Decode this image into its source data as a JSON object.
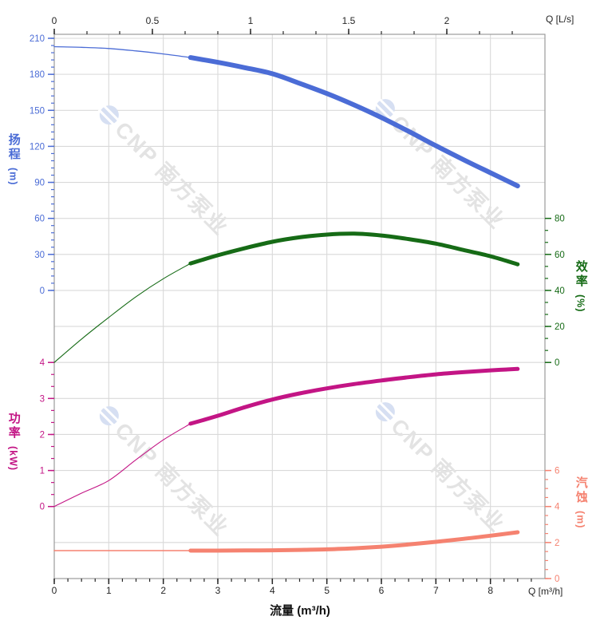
{
  "page": {
    "corner_top_right": "Q [L/s]",
    "corner_bottom_right": "Q [m³/h]",
    "xlabel": "流量 (m³/h)"
  },
  "axis_titles": {
    "head": {
      "chars": "扬程",
      "unit": "(m)"
    },
    "power": {
      "chars": "功率",
      "unit": "(kW)"
    },
    "efficiency": {
      "chars": "效率",
      "unit": "(%)"
    },
    "npsh": {
      "chars": "汽蚀",
      "unit": "(m)"
    }
  },
  "watermark": {
    "text": "CNP 南方泵业"
  },
  "colors": {
    "head": "#4b6cd6",
    "efficiency": "#166b16",
    "power": "#c31585",
    "npsh": "#f58270",
    "grid": "#d9d9d9",
    "axis_line": "#9b9b9b",
    "tick_black": "#262626",
    "watermark_text": "#e3e3e3",
    "watermark_logo": "#d6dff2"
  },
  "chart_data": {
    "type": "line",
    "title": "",
    "xlabel": "流量 (m³/h)",
    "x_bottom": {
      "unit": "m³/h",
      "range": [
        0,
        9
      ],
      "major_ticks": [
        0,
        1,
        2,
        3,
        4,
        5,
        6,
        7,
        8
      ],
      "minor_step": 0.25,
      "corner_label": "Q [m³/h]"
    },
    "x_top": {
      "unit": "L/s",
      "range": [
        0,
        2.5
      ],
      "major_ticks": [
        0,
        0.5,
        1,
        1.5,
        2
      ],
      "minor_step": 0.166667,
      "m3h_per_unit": 3.6,
      "corner_label": "Q [L/s]"
    },
    "y_axes": {
      "head": {
        "label": "扬程 (m)",
        "ticks": [
          210,
          180,
          150,
          120,
          90,
          60,
          30,
          0
        ],
        "minor_step": 6,
        "range": [
          0,
          210
        ]
      },
      "efficiency": {
        "label": "效率 (%)",
        "ticks": [
          80,
          60,
          40,
          20,
          0
        ],
        "minor_step": 6.66667,
        "range": [
          0,
          80
        ]
      },
      "power": {
        "label": "功率 (kW)",
        "ticks": [
          4,
          3,
          2,
          1,
          0
        ],
        "minor_step": 0.33333,
        "range": [
          0,
          4
        ]
      },
      "npsh": {
        "label": "汽蚀 (m)",
        "ticks": [
          6,
          4,
          2,
          0
        ],
        "minor_step": 0.5,
        "range": [
          0,
          6
        ]
      }
    },
    "x_values_m3h": [
      0,
      0.5,
      1,
      1.5,
      2,
      2.5,
      3,
      3.5,
      4,
      4.5,
      5,
      5.5,
      6,
      6.5,
      7,
      7.5,
      8,
      8.5
    ],
    "series": [
      {
        "name": "head",
        "axis": "head",
        "color_key": "head",
        "duty_start": 2.5,
        "values": [
          203,
          202.5,
          201.5,
          199.5,
          197,
          194,
          190,
          185.5,
          180.5,
          172.5,
          164,
          154.5,
          144,
          132.5,
          120.5,
          109,
          98,
          87
        ]
      },
      {
        "name": "efficiency",
        "axis": "efficiency",
        "color_key": "efficiency",
        "duty_start": 2.5,
        "values": [
          0,
          13,
          25,
          36.5,
          46.5,
          55,
          59.5,
          63.5,
          67,
          69.5,
          71,
          71.5,
          70.5,
          68.5,
          66,
          62.5,
          59,
          54.5
        ]
      },
      {
        "name": "power",
        "axis": "power",
        "color_key": "power",
        "duty_start": 2.5,
        "values": [
          0,
          0.37,
          0.72,
          1.3,
          1.85,
          2.3,
          2.52,
          2.76,
          2.97,
          3.14,
          3.28,
          3.4,
          3.5,
          3.59,
          3.67,
          3.73,
          3.78,
          3.82
        ]
      },
      {
        "name": "npsh",
        "axis": "npsh",
        "color_key": "npsh",
        "duty_start": 2.5,
        "values": [
          1.55,
          1.55,
          1.55,
          1.55,
          1.55,
          1.55,
          1.55,
          1.56,
          1.57,
          1.59,
          1.62,
          1.68,
          1.77,
          1.89,
          2.04,
          2.2,
          2.38,
          2.57
        ]
      }
    ]
  }
}
